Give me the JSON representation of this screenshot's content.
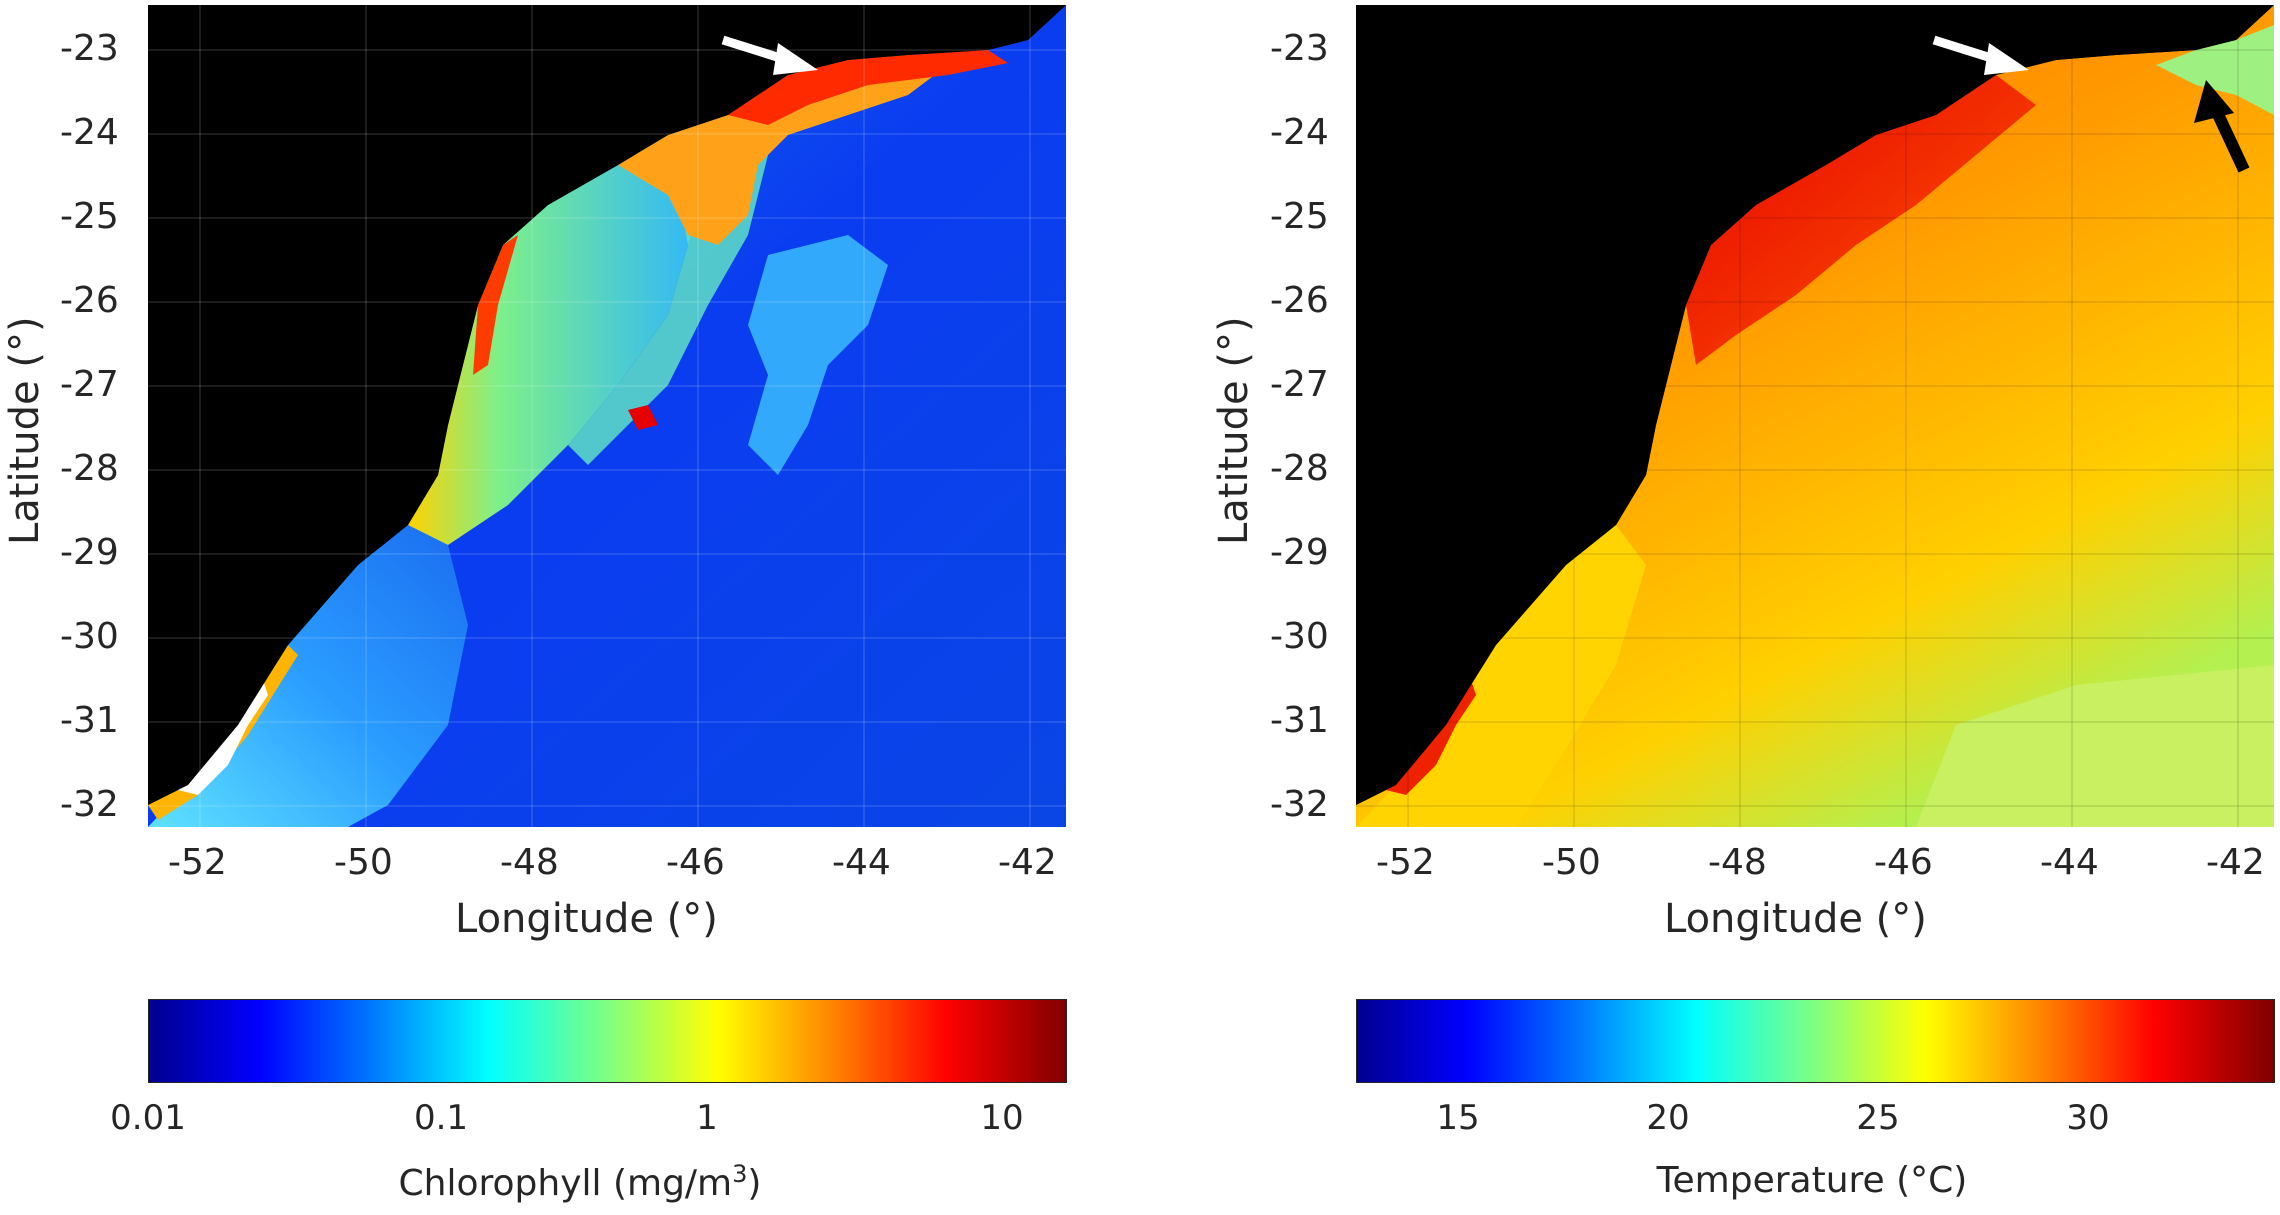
{
  "panels": [
    {
      "id": "chlorophyll",
      "xlabel": "Longitude (°)",
      "ylabel": "Latitude (°)",
      "xticks": [
        "-52",
        "-50",
        "-48",
        "-46",
        "-44",
        "-42"
      ],
      "yticks": [
        "-23",
        "-24",
        "-25",
        "-26",
        "-27",
        "-28",
        "-29",
        "-30",
        "-31",
        "-32"
      ],
      "colorbar": {
        "ticks": [
          "0.01",
          "0.1",
          "1",
          "10"
        ],
        "title_main": "Chlorophyll (mg/m",
        "title_sup": "3",
        "title_end": ")",
        "scale": "log",
        "colormap": "jet"
      }
    },
    {
      "id": "temperature",
      "xlabel": "Longitude (°)",
      "ylabel": "Latitude (°)",
      "xticks": [
        "-52",
        "-50",
        "-48",
        "-46",
        "-44",
        "-42"
      ],
      "yticks": [
        "-23",
        "-24",
        "-25",
        "-26",
        "-27",
        "-28",
        "-29",
        "-30",
        "-31",
        "-32"
      ],
      "colorbar": {
        "ticks": [
          "15",
          "20",
          "25",
          "30"
        ],
        "title_main": "Temperature (°C)",
        "scale": "linear",
        "colormap": "jet"
      }
    }
  ],
  "colors": {
    "land": "#000000",
    "annotation_arrow_white": "#ffffff",
    "annotation_arrow_black": "#000000"
  }
}
